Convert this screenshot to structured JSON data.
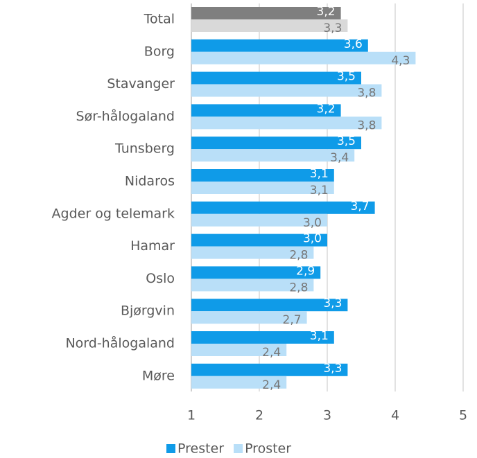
{
  "chart_data": {
    "type": "hbar",
    "categories": [
      "Total",
      "Borg",
      "Stavanger",
      "Sør-hålogaland",
      "Tunsberg",
      "Nidaros",
      "Agder og telemark",
      "Hamar",
      "Oslo",
      "Bjørgvin",
      "Nord-hålogaland",
      "Møre"
    ],
    "series": [
      {
        "name": "Prester",
        "color": "#0f9be8",
        "label_color": "#ffffff",
        "highlight": {
          "index": 0,
          "color": "#7f7f7f"
        },
        "values": [
          3.2,
          3.6,
          3.5,
          3.2,
          3.5,
          3.1,
          3.7,
          3.0,
          2.9,
          3.3,
          3.1,
          3.3
        ],
        "value_labels": [
          "3,2",
          "3,6",
          "3,5",
          "3,2",
          "3,5",
          "3,1",
          "3,7",
          "3,0",
          "2,9",
          "3,3",
          "3,1",
          "3,3"
        ]
      },
      {
        "name": "Proster",
        "color": "#b9dff8",
        "label_color": "#767676",
        "highlight": {
          "index": 0,
          "color": "#d9d9d9"
        },
        "values": [
          3.3,
          4.3,
          3.8,
          3.8,
          3.4,
          3.1,
          3.0,
          2.8,
          2.8,
          2.7,
          2.4,
          2.4
        ],
        "value_labels": [
          "3,3",
          "4,3",
          "3,8",
          "3,8",
          "3,4",
          "3,1",
          "3,0",
          "2,8",
          "2,8",
          "2,7",
          "2,4",
          "2,4"
        ]
      }
    ],
    "xlim": [
      1,
      5
    ],
    "xticks": [
      1,
      2,
      3,
      4,
      5
    ],
    "grid": true,
    "legend": "bottom"
  }
}
